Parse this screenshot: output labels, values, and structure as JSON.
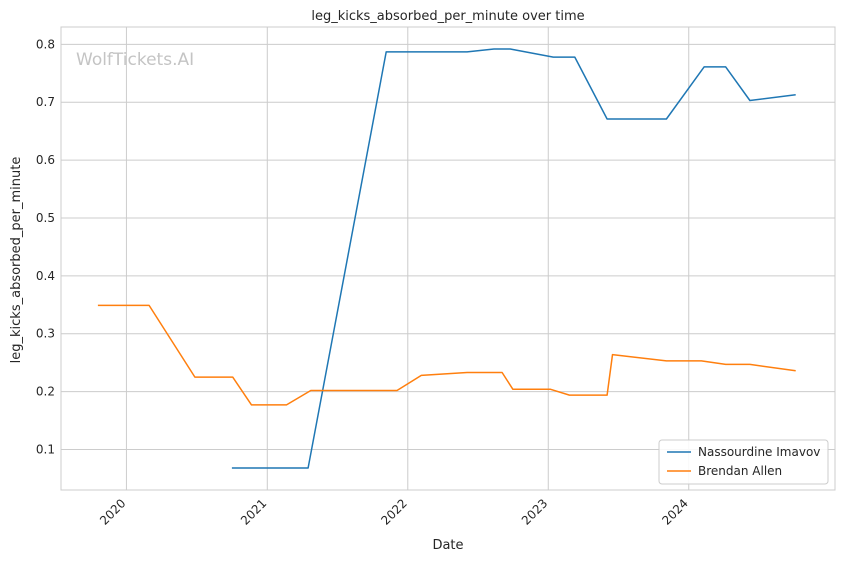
{
  "chart_data": {
    "type": "line",
    "title": "leg_kicks_absorbed_per_minute over time",
    "xlabel": "Date",
    "ylabel": "leg_kicks_absorbed_per_minute",
    "watermark": "WolfTickets.AI",
    "xlim": [
      "2019-07-15",
      "2025-01-15"
    ],
    "ylim": [
      0.03,
      0.83
    ],
    "x_ticks": [
      "2020-01-01",
      "2021-01-01",
      "2022-01-01",
      "2023-01-01",
      "2024-01-01"
    ],
    "x_tick_labels": [
      "2020",
      "2021",
      "2022",
      "2023",
      "2024"
    ],
    "y_ticks": [
      0.1,
      0.2,
      0.3,
      0.4,
      0.5,
      0.6,
      0.7,
      0.8
    ],
    "y_tick_labels": [
      "0.1",
      "0.2",
      "0.3",
      "0.4",
      "0.5",
      "0.6",
      "0.7",
      "0.8"
    ],
    "grid": true,
    "legend_position": "lower-right",
    "series": [
      {
        "name": "Nassourdine Imavov",
        "color": "#1f77b4",
        "x": [
          "2020-10-01",
          "2021-04-17",
          "2021-11-06",
          "2022-06-04",
          "2022-08-13",
          "2022-09-24",
          "2023-01-14",
          "2023-03-11",
          "2023-06-03",
          "2023-11-04",
          "2024-02-10",
          "2024-04-06",
          "2024-06-08",
          "2024-10-05"
        ],
        "y": [
          0.068,
          0.068,
          0.787,
          0.787,
          0.792,
          0.792,
          0.778,
          0.778,
          0.671,
          0.671,
          0.761,
          0.761,
          0.703,
          0.713
        ]
      },
      {
        "name": "Brendan Allen",
        "color": "#ff7f0e",
        "x": [
          "2019-10-19",
          "2020-02-29",
          "2020-06-27",
          "2020-10-03",
          "2020-11-21",
          "2021-02-20",
          "2021-04-24",
          "2021-12-04",
          "2022-02-05",
          "2022-06-04",
          "2022-09-03",
          "2022-10-01",
          "2023-01-07",
          "2023-02-25",
          "2023-06-03",
          "2023-06-17",
          "2023-11-04",
          "2024-02-03",
          "2024-04-06",
          "2024-06-08",
          "2024-10-05"
        ],
        "y": [
          0.349,
          0.349,
          0.225,
          0.225,
          0.177,
          0.177,
          0.202,
          0.202,
          0.228,
          0.233,
          0.233,
          0.204,
          0.204,
          0.194,
          0.194,
          0.264,
          0.253,
          0.253,
          0.247,
          0.247,
          0.236
        ]
      }
    ]
  }
}
